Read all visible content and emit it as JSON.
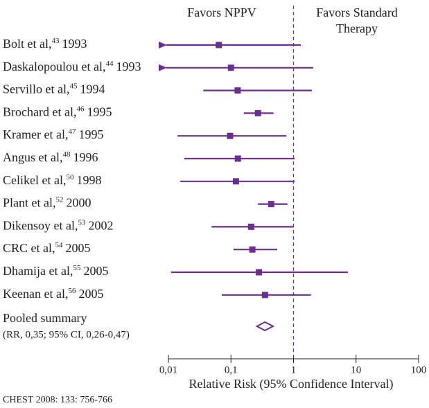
{
  "chart_data": {
    "type": "forest",
    "left_header": "Favors NPPV",
    "right_header": [
      "Favors Standard",
      "Therapy"
    ],
    "x_label": "Relative Risk (95% Confidence Interval)",
    "source": "CHEST 2008: 133: 756-766",
    "color": "#6b2d8f",
    "log_x": true,
    "xlim": [
      0.01,
      100
    ],
    "xticks": [
      {
        "value": 0.01,
        "label": "0,01"
      },
      {
        "value": 0.1,
        "label": "0,1"
      },
      1,
      10,
      100
    ],
    "reference_line": 1,
    "categories": [
      "Bolt et al,",
      "Daskalopoulou et al,",
      "Servillo et al,",
      "Brochard et al,",
      "Kramer et al,",
      "Angus et al,",
      "Celikel et al,",
      "Plant et al,",
      "Dikensoy et al,",
      "CRC et al,",
      "Dhamija et al,",
      "Keenan et al,"
    ],
    "refs": [
      "43",
      "44",
      "45",
      "46",
      "47",
      "48",
      "50",
      "52",
      "53",
      "54",
      "55",
      "56"
    ],
    "years": [
      "1993",
      "1993",
      "1994",
      "1995",
      "1995",
      "1996",
      "1998",
      "2000",
      "2002",
      "2005",
      "2005",
      "2005"
    ],
    "values": [
      0.064,
      0.1,
      0.128,
      0.27,
      0.097,
      0.129,
      0.12,
      0.44,
      0.21,
      0.22,
      0.28,
      0.35
    ],
    "lower": [
      null,
      null,
      0.036,
      0.16,
      0.014,
      0.018,
      0.0155,
      0.27,
      0.049,
      0.11,
      0.011,
      0.071
    ],
    "upper": [
      1.31,
      2.07,
      1.97,
      0.48,
      0.77,
      1.04,
      1.04,
      0.8,
      1.01,
      0.55,
      7.4,
      1.9
    ],
    "pooled": {
      "label": "Pooled summary",
      "note": "(RR, 0,35; 95% CI, 0,26-0,47)",
      "value": 0.35,
      "lower": 0.26,
      "upper": 0.47
    }
  }
}
